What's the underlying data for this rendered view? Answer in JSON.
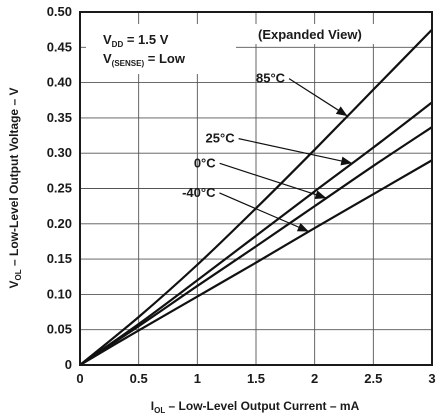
{
  "chart_data": {
    "type": "line",
    "title": "",
    "xlabel": {
      "main": "I",
      "sub": "OL",
      "rest": " – Low-Level Output Current – mA"
    },
    "ylabel": {
      "main": "V",
      "sub": "OL",
      "rest": " – Low-Level Output Voltage – V"
    },
    "xlim": [
      0,
      3
    ],
    "ylim": [
      0,
      0.5
    ],
    "x_ticks": [
      "0",
      "0.5",
      "1",
      "1.5",
      "2",
      "2.5",
      "3"
    ],
    "y_ticks": [
      "0",
      "0.05",
      "0.10",
      "0.15",
      "0.20",
      "0.25",
      "0.30",
      "0.35",
      "0.40",
      "0.45",
      "0.50"
    ],
    "grid": true,
    "annotations": {
      "vdd": {
        "main": "V",
        "sub": "DD",
        "rest": " = 1.5 V"
      },
      "vsense": {
        "main": "V",
        "sub": "(SENSE)",
        "rest": " = Low"
      },
      "view": "(Expanded View)"
    },
    "x": [
      0,
      0.5,
      1,
      1.5,
      2,
      2.5,
      3
    ],
    "series": [
      {
        "name": "85°C",
        "values": [
          0,
          0.068,
          0.142,
          0.222,
          0.305,
          0.39,
          0.475
        ],
        "label_at": [
          1.5,
          0.4
        ],
        "arrow_to": 2.28
      },
      {
        "name": "25°C",
        "values": [
          0,
          0.058,
          0.12,
          0.183,
          0.246,
          0.308,
          0.372
        ],
        "label_at": [
          1.07,
          0.315
        ],
        "arrow_to": 2.32
      },
      {
        "name": "0°C",
        "values": [
          0,
          0.055,
          0.112,
          0.168,
          0.225,
          0.282,
          0.337
        ],
        "label_at": [
          0.97,
          0.28
        ],
        "arrow_to": 2.1
      },
      {
        "name": "-40°C",
        "values": [
          0,
          0.049,
          0.097,
          0.145,
          0.194,
          0.242,
          0.29
        ],
        "label_at": [
          0.87,
          0.238
        ],
        "arrow_to": 1.95
      }
    ]
  }
}
